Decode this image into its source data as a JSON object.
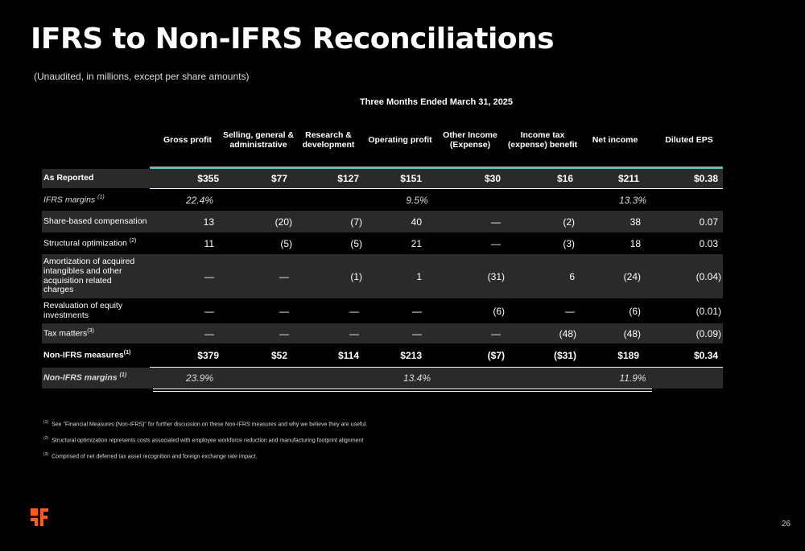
{
  "title": "IFRS to Non-IFRS Reconciliations",
  "subtitle": "(Unaudited, in millions, except per share amounts)",
  "period": "Three Months Ended March 31, 2025",
  "columns": [
    "Gross profit",
    "Selling, general & administrative",
    "Research & development",
    "Operating profit",
    "Other Income (Expense)",
    "Income tax (expense) benefit",
    "Net income",
    "Diluted EPS"
  ],
  "rows": {
    "as_reported": {
      "label": "As Reported",
      "values": [
        "$355",
        "$77",
        "$127",
        "$151",
        "$30",
        "$16",
        "$211",
        "$0.38"
      ]
    },
    "ifrs_margins": {
      "label": "IFRS margins",
      "sup": "(1)",
      "gross": "22.4%",
      "operating": "9.5%",
      "net": "13.3%"
    },
    "share_based": {
      "label": "Share-based compensation",
      "values": [
        "13",
        "(20)",
        "(7)",
        "40",
        "—",
        "(2)",
        "38",
        "0.07"
      ]
    },
    "structural": {
      "label": "Structural optimization",
      "sup": "(2)",
      "values": [
        "11",
        "(5)",
        "(5)",
        "21",
        "—",
        "(3)",
        "18",
        "0.03"
      ]
    },
    "amortization": {
      "label": "Amortization of acquired intangibles and other acquisition related charges",
      "values": [
        "—",
        "—",
        "(1)",
        "1",
        "(31)",
        "6",
        "(24)",
        "(0.04)"
      ]
    },
    "revaluation": {
      "label": "Revaluation of equity investments",
      "values": [
        "—",
        "—",
        "—",
        "—",
        "(6)",
        "—",
        "(6)",
        "(0.01)"
      ]
    },
    "tax_matters": {
      "label": "Tax matters",
      "sup": "(3)",
      "values": [
        "—",
        "—",
        "—",
        "—",
        "—",
        "(48)",
        "(48)",
        "(0.09)"
      ]
    },
    "non_ifrs": {
      "label": "Non-IFRS measures",
      "sup": "(1)",
      "values": [
        "$379",
        "$52",
        "$114",
        "$213",
        "($7)",
        "($31)",
        "$189",
        "$0.34"
      ]
    },
    "non_ifrs_margins": {
      "label": "Non-IFRS margins",
      "sup": "(1)",
      "gross": "23.9%",
      "operating": "13.4%",
      "net": "11.9%"
    }
  },
  "footnotes": [
    {
      "mark": "(1)",
      "text": "See \"Financial Measures (Non-IFRS)\" for further discussion on these Non-IFRS measures and why we believe they are useful."
    },
    {
      "mark": "(2)",
      "text": "Structural optimization represents costs associated with employee workforce reduction and manufacturing footprint alignment"
    },
    {
      "mark": "(3)",
      "text": "Comprised of net deferred tax asset recognition and foreign exchange rate impact."
    }
  ],
  "page_number": "26",
  "logo_icon": "brand-logo-icon",
  "colors": {
    "accent_teal": "#4fc6c0",
    "logo_orange": "#ff5a1f",
    "row_shade": "#2a2a2a"
  }
}
